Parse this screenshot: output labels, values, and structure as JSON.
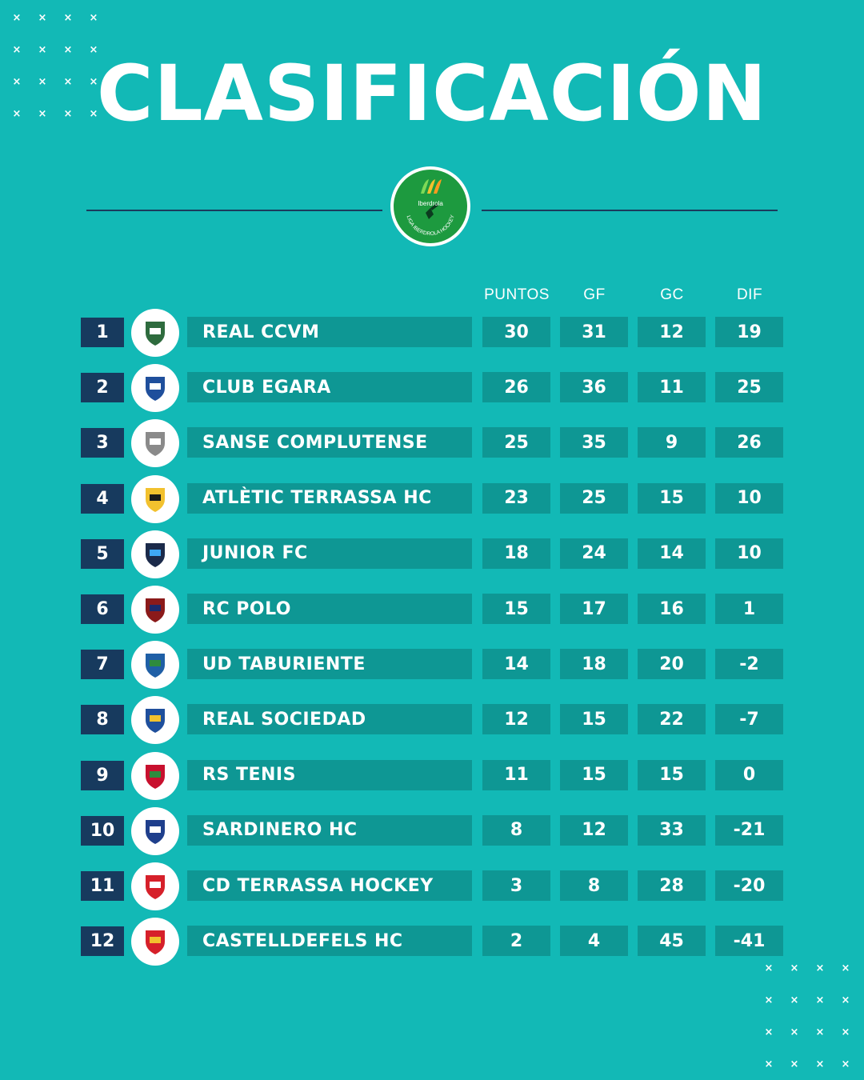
{
  "title": "CLASIFICACIÓN",
  "logo": {
    "brand": "Iberdrola",
    "caption": "LIGA IBERDROLA HOCKEY"
  },
  "colors": {
    "background": "#12b9b6",
    "cell": "#0e9794",
    "position_box": "#173a5e",
    "rule": "#1a3b5c",
    "logo_green": "#1d9a3f"
  },
  "headers": {
    "points": "PUNTOS",
    "goals_for": "GF",
    "goals_against": "GC",
    "difference": "DIF"
  },
  "standings": [
    {
      "pos": "1",
      "team": "REAL CCVM",
      "pts": "30",
      "gf": "31",
      "gc": "12",
      "dif": "19",
      "crest": "real-ccvm-crest-icon"
    },
    {
      "pos": "2",
      "team": "CLUB EGARA",
      "pts": "26",
      "gf": "36",
      "gc": "11",
      "dif": "25",
      "crest": "club-egara-crest-icon"
    },
    {
      "pos": "3",
      "team": "SANSE COMPLUTENSE",
      "pts": "25",
      "gf": "35",
      "gc": "9",
      "dif": "26",
      "crest": "sanse-complutense-crest-icon"
    },
    {
      "pos": "4",
      "team": "ATLÈTIC TERRASSA HC",
      "pts": "23",
      "gf": "25",
      "gc": "15",
      "dif": "10",
      "crest": "atletic-terrassa-crest-icon"
    },
    {
      "pos": "5",
      "team": "JUNIOR FC",
      "pts": "18",
      "gf": "24",
      "gc": "14",
      "dif": "10",
      "crest": "junior-fc-crest-icon"
    },
    {
      "pos": "6",
      "team": "RC POLO",
      "pts": "15",
      "gf": "17",
      "gc": "16",
      "dif": "1",
      "crest": "rc-polo-crest-icon"
    },
    {
      "pos": "7",
      "team": "UD TABURIENTE",
      "pts": "14",
      "gf": "18",
      "gc": "20",
      "dif": "-2",
      "crest": "ud-taburiente-crest-icon"
    },
    {
      "pos": "8",
      "team": "REAL SOCIEDAD",
      "pts": "12",
      "gf": "15",
      "gc": "22",
      "dif": "-7",
      "crest": "real-sociedad-crest-icon"
    },
    {
      "pos": "9",
      "team": "RS TENIS",
      "pts": "11",
      "gf": "15",
      "gc": "15",
      "dif": "0",
      "crest": "rs-tenis-crest-icon"
    },
    {
      "pos": "10",
      "team": "SARDINERO HC",
      "pts": "8",
      "gf": "12",
      "gc": "33",
      "dif": "-21",
      "crest": "sardinero-hc-crest-icon"
    },
    {
      "pos": "11",
      "team": "CD TERRASSA HOCKEY",
      "pts": "3",
      "gf": "8",
      "gc": "28",
      "dif": "-20",
      "crest": "cd-terrassa-crest-icon"
    },
    {
      "pos": "12",
      "team": "CASTELLDEFELS HC",
      "pts": "2",
      "gf": "4",
      "gc": "45",
      "dif": "-41",
      "crest": "castelldefels-crest-icon"
    }
  ]
}
